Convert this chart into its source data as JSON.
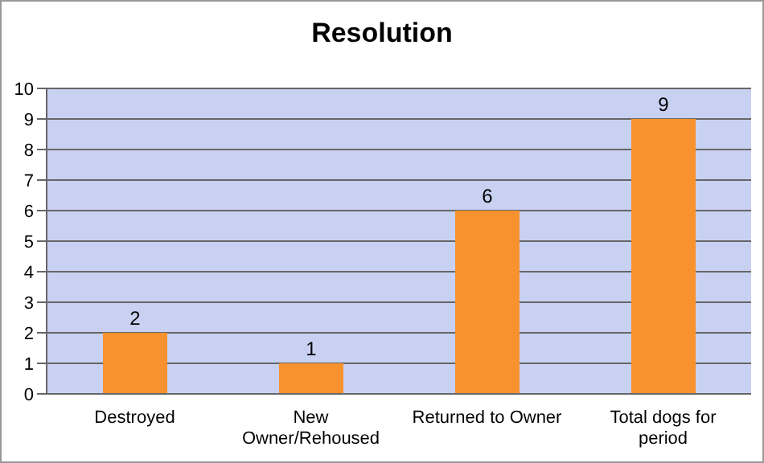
{
  "chart_data": {
    "type": "bar",
    "title": "Resolution",
    "categories": [
      "Destroyed",
      "New Owner/Rehoused",
      "Returned to Owner",
      "Total dogs for period"
    ],
    "values": [
      2,
      1,
      6,
      9
    ],
    "color": "#f7922e",
    "ylim": [
      0,
      10
    ],
    "yticks": [
      0,
      1,
      2,
      3,
      4,
      5,
      6,
      7,
      8,
      9,
      10
    ],
    "grid": "y",
    "data_labels": true,
    "legend": false
  }
}
